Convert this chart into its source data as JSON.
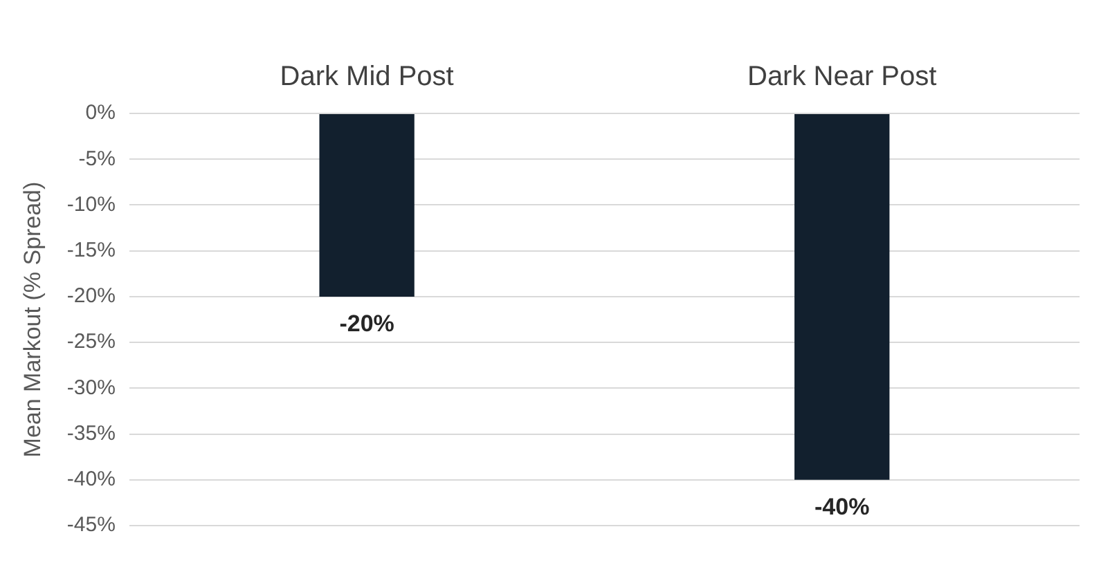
{
  "chart_data": {
    "type": "bar",
    "ylabel": "Mean Markout (% Spread)",
    "categories": [
      "Dark Mid Post",
      "Dark Near Post"
    ],
    "values": [
      -20,
      -40
    ],
    "color": "#12202e",
    "value_labels": [
      "-20%",
      "-40%"
    ],
    "ylim": [
      -45,
      0
    ],
    "yticks": [
      {
        "value": 0,
        "label": "0%"
      },
      {
        "value": -5,
        "label": "-5%"
      },
      {
        "value": -10,
        "label": "-10%"
      },
      {
        "value": -15,
        "label": "-15%"
      },
      {
        "value": -20,
        "label": "-20%"
      },
      {
        "value": -25,
        "label": "-25%"
      },
      {
        "value": -30,
        "label": "-30%"
      },
      {
        "value": -35,
        "label": "-35%"
      },
      {
        "value": -40,
        "label": "-40%"
      },
      {
        "value": -45,
        "label": "-45%"
      }
    ],
    "grid": "y",
    "legend": false
  }
}
